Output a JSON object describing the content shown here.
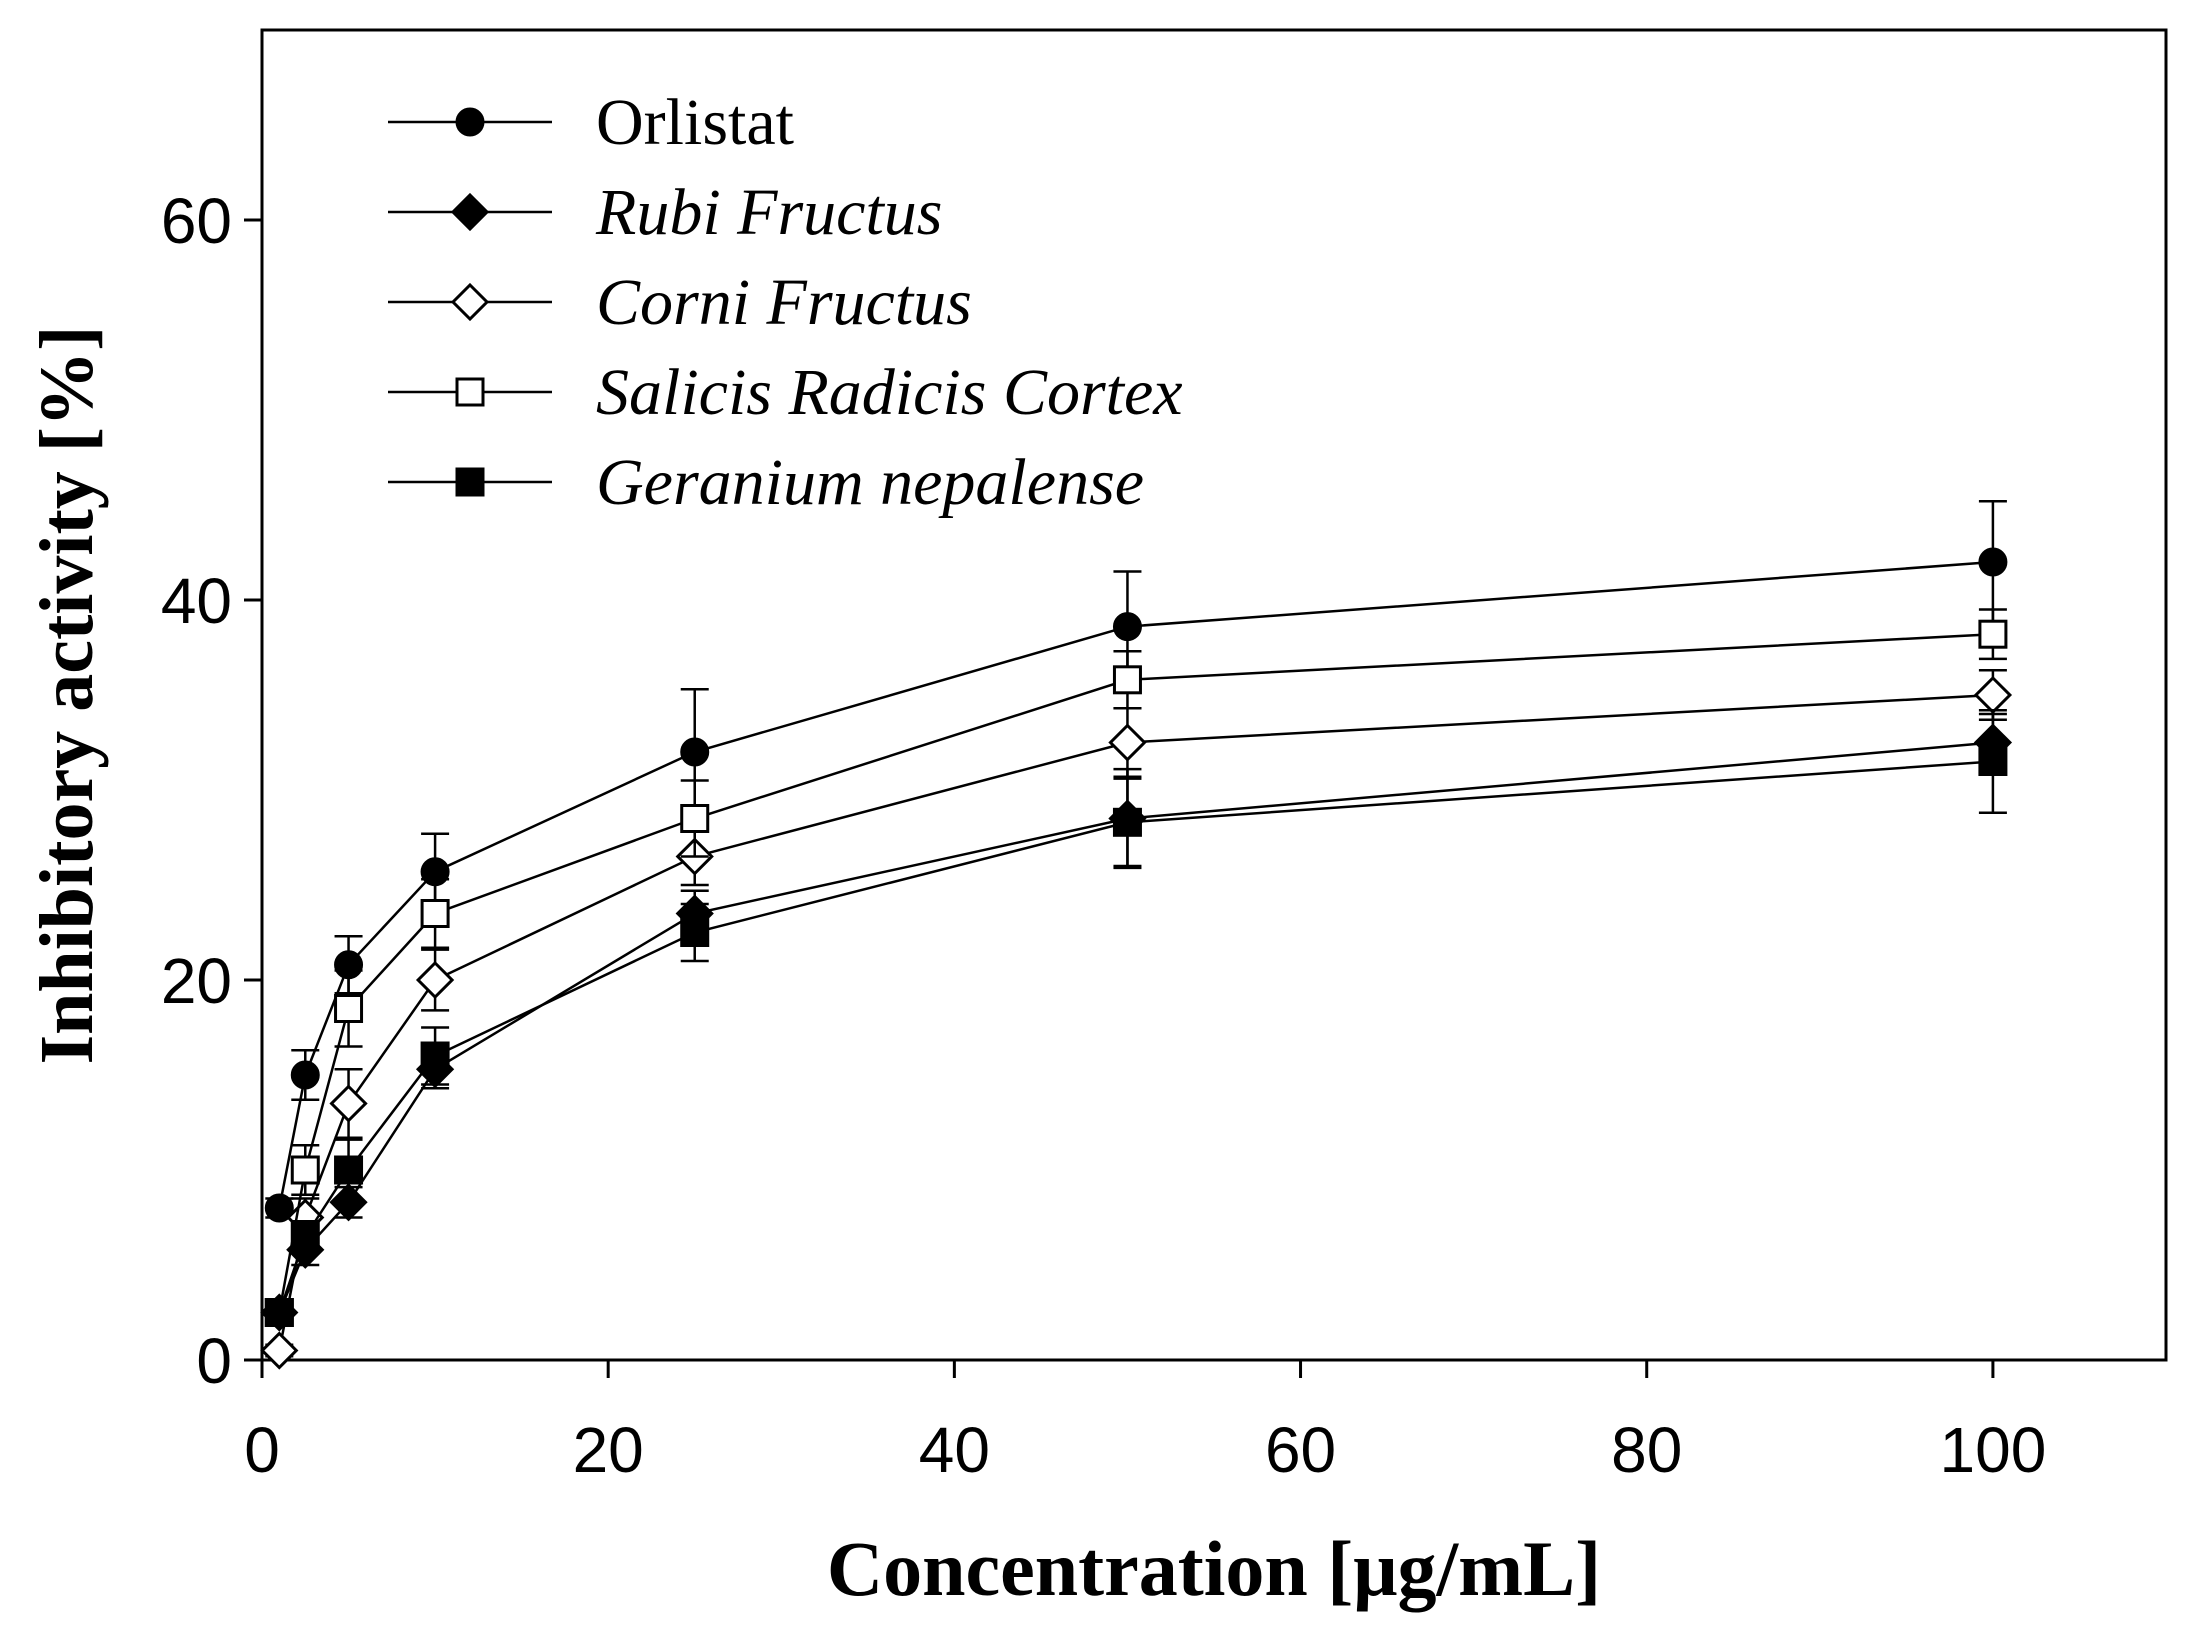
{
  "chart_data": {
    "type": "line",
    "title": "",
    "xlabel": "Concentration [μg/mL]",
    "ylabel": "Inhibitory activity [%]",
    "xlim": [
      0,
      110
    ],
    "ylim": [
      0,
      70
    ],
    "xticks": [
      0,
      20,
      40,
      60,
      80,
      100
    ],
    "yticks": [
      0,
      20,
      40,
      60
    ],
    "x": [
      1,
      2.5,
      5,
      10,
      25,
      50,
      100
    ],
    "grid": false,
    "legend_position": "top-left",
    "series": [
      {
        "name": "Orlistat",
        "italic": false,
        "marker": "circle-filled",
        "values": [
          8.0,
          15.0,
          20.8,
          25.7,
          32.0,
          38.6,
          42.0
        ],
        "errors": [
          0.5,
          1.3,
          1.5,
          2.0,
          3.3,
          2.9,
          3.2
        ]
      },
      {
        "name": "Rubi Fructus",
        "italic": true,
        "marker": "diamond-filled",
        "values": [
          2.5,
          5.8,
          8.3,
          15.3,
          23.5,
          28.5,
          32.5
        ],
        "errors": [
          0.4,
          0.8,
          0.8,
          1.0,
          1.2,
          2.6,
          1.5
        ]
      },
      {
        "name": "Corni Fructus",
        "italic": true,
        "marker": "diamond-open",
        "values": [
          0.5,
          7.5,
          13.5,
          20.0,
          26.5,
          32.5,
          35.0
        ],
        "errors": [
          0.3,
          1.0,
          1.8,
          1.6,
          1.5,
          1.8,
          1.3
        ]
      },
      {
        "name": "Salicis Radicis Cortex",
        "italic": true,
        "marker": "square-open",
        "values": [
          2.5,
          10.0,
          18.5,
          23.5,
          28.5,
          35.8,
          38.2
        ],
        "errors": [
          0.3,
          1.3,
          2.0,
          1.8,
          2.0,
          1.5,
          1.3
        ]
      },
      {
        "name": "Geranium nepalense",
        "italic": true,
        "marker": "square-filled",
        "values": [
          2.5,
          6.5,
          10.0,
          16.0,
          22.5,
          28.3,
          31.5
        ],
        "errors": [
          0.3,
          0.8,
          1.6,
          1.5,
          1.5,
          2.3,
          2.7
        ]
      }
    ]
  }
}
